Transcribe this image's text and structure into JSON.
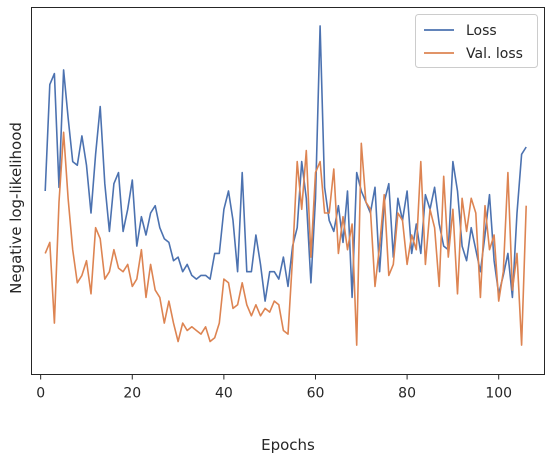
{
  "chart_data": {
    "type": "line",
    "title": "",
    "xlabel": "Epochs",
    "ylabel": "Negative log-likelihood",
    "xlim": [
      -2,
      110
    ],
    "ylim": [
      0,
      100
    ],
    "xticks": [
      0,
      20,
      40,
      60,
      80,
      100
    ],
    "xtick_labels": [
      "0",
      "20",
      "40",
      "60",
      "80",
      "100"
    ],
    "y_tick_labels_shown": false,
    "grid": false,
    "legend_position": "top-right",
    "series": [
      {
        "name": "Loss",
        "color": "#4c72b0",
        "x": [
          1,
          2,
          3,
          4,
          5,
          6,
          7,
          8,
          9,
          10,
          11,
          12,
          13,
          14,
          15,
          16,
          17,
          18,
          19,
          20,
          21,
          22,
          23,
          24,
          25,
          26,
          27,
          28,
          29,
          30,
          31,
          32,
          33,
          34,
          35,
          36,
          37,
          38,
          39,
          40,
          41,
          42,
          43,
          44,
          45,
          46,
          47,
          48,
          49,
          50,
          51,
          52,
          53,
          54,
          55,
          56,
          57,
          58,
          59,
          60,
          61,
          62,
          63,
          64,
          65,
          66,
          67,
          68,
          69,
          70,
          71,
          72,
          73,
          74,
          75,
          76,
          77,
          78,
          79,
          80,
          81,
          82,
          83,
          84,
          85,
          86,
          87,
          88,
          89,
          90,
          91,
          92,
          93,
          94,
          95,
          96,
          97,
          98,
          99,
          100,
          101,
          102,
          103,
          104,
          105,
          106
        ],
        "values": [
          50,
          79,
          82,
          51,
          83,
          70,
          58,
          57,
          65,
          57,
          44,
          60,
          73,
          52,
          39,
          52,
          55,
          39,
          45,
          53,
          35,
          43,
          38,
          44,
          46,
          40,
          37,
          36,
          31,
          32,
          28,
          30,
          27,
          26,
          27,
          27,
          26,
          33,
          33,
          45,
          50,
          42,
          28,
          55,
          28,
          28,
          38,
          30,
          20,
          28,
          28,
          26,
          32,
          24,
          35,
          40,
          58,
          48,
          25,
          48,
          95,
          51,
          42,
          39,
          46,
          36,
          50,
          21,
          55,
          50,
          47,
          44,
          51,
          28,
          47,
          52,
          32,
          48,
          42,
          50,
          33,
          41,
          33,
          49,
          45,
          51,
          41,
          35,
          34,
          58,
          50,
          35,
          31,
          40,
          34,
          28,
          38,
          49,
          31,
          22,
          27,
          33,
          21,
          44,
          60,
          62
        ],
        "y_values_note": "relative vertical position, 0 = bottom of axes, 100 = top of axes (axis has no printed values)"
      },
      {
        "name": "Val. loss",
        "color": "#dd8452",
        "x": [
          1,
          2,
          3,
          4,
          5,
          6,
          7,
          8,
          9,
          10,
          11,
          12,
          13,
          14,
          15,
          16,
          17,
          18,
          19,
          20,
          21,
          22,
          23,
          24,
          25,
          26,
          27,
          28,
          29,
          30,
          31,
          32,
          33,
          34,
          35,
          36,
          37,
          38,
          39,
          40,
          41,
          42,
          43,
          44,
          45,
          46,
          47,
          48,
          49,
          50,
          51,
          52,
          53,
          54,
          55,
          56,
          57,
          58,
          59,
          60,
          61,
          62,
          63,
          64,
          65,
          66,
          67,
          68,
          69,
          70,
          71,
          72,
          73,
          74,
          75,
          76,
          77,
          78,
          79,
          80,
          81,
          82,
          83,
          84,
          85,
          86,
          87,
          88,
          89,
          90,
          91,
          92,
          93,
          94,
          95,
          96,
          97,
          98,
          99,
          100,
          101,
          102,
          103,
          104,
          105,
          106
        ],
        "values": [
          33,
          36,
          14,
          47,
          66,
          48,
          34,
          25,
          27,
          31,
          22,
          40,
          37,
          26,
          28,
          34,
          29,
          28,
          30,
          24,
          26,
          34,
          21,
          30,
          23,
          21,
          14,
          20,
          14,
          9,
          14,
          12,
          13,
          12,
          11,
          13,
          9,
          10,
          14,
          26,
          25,
          18,
          19,
          25,
          19,
          16,
          19,
          16,
          18,
          17,
          20,
          19,
          12,
          11,
          32,
          58,
          45,
          61,
          32,
          55,
          58,
          44,
          44,
          56,
          33,
          43,
          34,
          41,
          8,
          63,
          47,
          45,
          24,
          35,
          49,
          27,
          30,
          44,
          42,
          30,
          38,
          34,
          58,
          30,
          45,
          40,
          24,
          54,
          32,
          45,
          22,
          48,
          39,
          48,
          44,
          21,
          46,
          34,
          38,
          20,
          28,
          55,
          23,
          33,
          8,
          46
        ],
        "y_values_note": "relative vertical position, 0 = bottom of axes, 100 = top of axes (axis has no printed values)"
      }
    ]
  }
}
